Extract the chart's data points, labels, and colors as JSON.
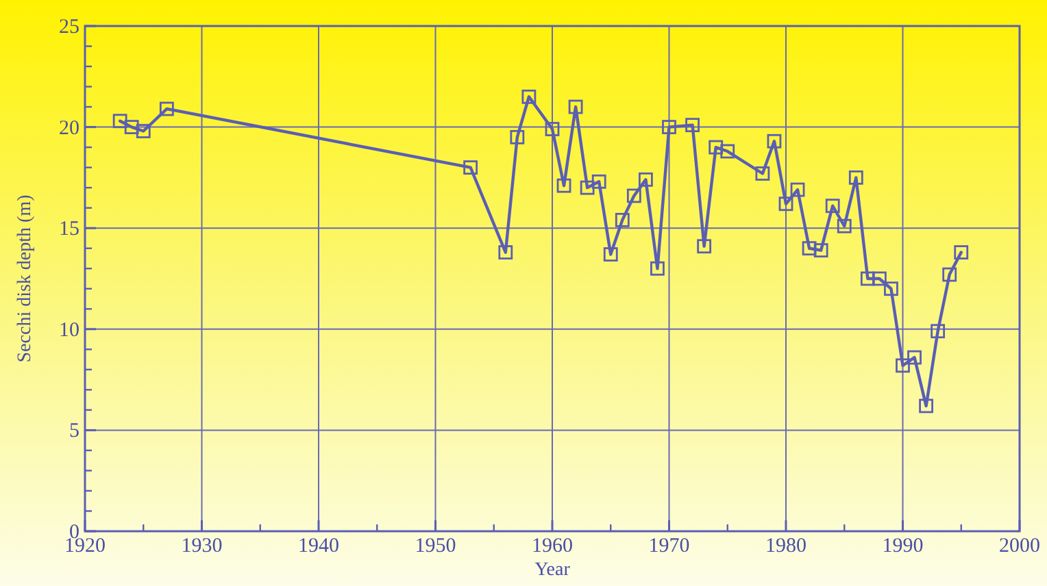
{
  "chart_data": {
    "type": "line",
    "xlabel": "Year",
    "ylabel": "Secchi disk depth (m)",
    "x": [
      1923,
      1924,
      1925,
      1927,
      1953,
      1956,
      1957,
      1958,
      1960,
      1961,
      1962,
      1963,
      1964,
      1965,
      1966,
      1967,
      1968,
      1969,
      1970,
      1972,
      1973,
      1974,
      1975,
      1978,
      1979,
      1980,
      1981,
      1982,
      1983,
      1984,
      1985,
      1986,
      1987,
      1988,
      1989,
      1990,
      1991,
      1992,
      1993,
      1994,
      1995
    ],
    "series": [
      {
        "color": "#5a5eb4",
        "values": [
          20.3,
          20.0,
          19.8,
          20.9,
          18.0,
          13.8,
          19.5,
          21.5,
          19.9,
          17.1,
          21.0,
          17.0,
          17.3,
          13.7,
          15.4,
          16.6,
          17.4,
          13.0,
          20.0,
          20.1,
          14.1,
          19.0,
          18.8,
          17.7,
          19.3,
          16.2,
          16.9,
          14.0,
          13.9,
          16.1,
          15.1,
          17.5,
          12.5,
          12.5,
          12.0,
          8.2,
          8.6,
          6.2,
          9.9,
          12.7,
          13.8
        ]
      }
    ],
    "xlim": [
      1920,
      2000
    ],
    "xticks": [
      1920,
      1930,
      1940,
      1950,
      1960,
      1970,
      1980,
      1990,
      2000
    ],
    "ylim": [
      0,
      25
    ],
    "yticks": [
      0,
      5,
      10,
      15,
      20,
      25
    ],
    "grid": true,
    "marker": "square",
    "line_style": "solid"
  }
}
